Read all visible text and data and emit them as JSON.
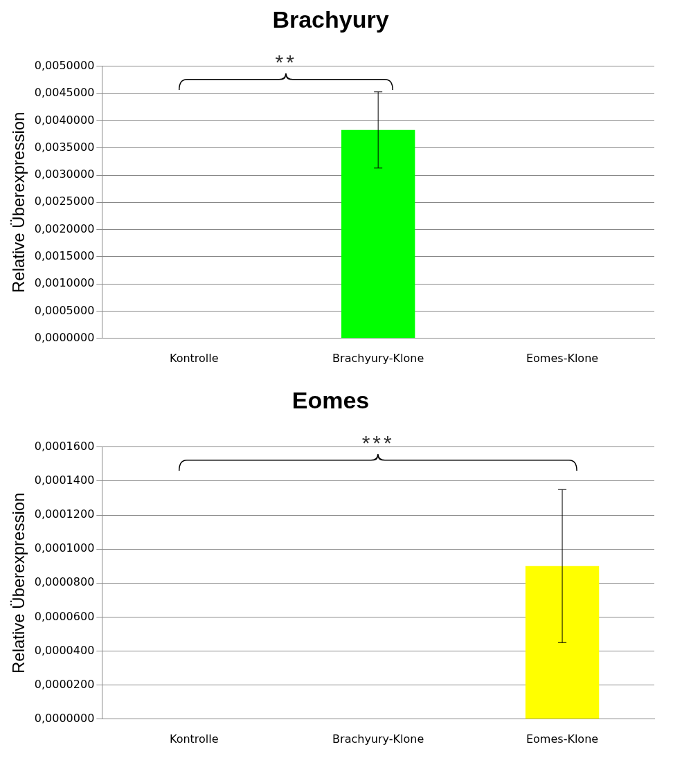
{
  "chart_data": [
    {
      "type": "bar",
      "title": "Brachyury",
      "ylabel": "Relative Überexpression",
      "categories": [
        "Kontrolle",
        "Brachyury-Klone",
        "Eomes-Klone"
      ],
      "values": [
        0,
        0.00383,
        0
      ],
      "errors": [
        null,
        0.0007,
        null
      ],
      "colors": [
        "#00ff00",
        "#00ff00",
        "#00ff00"
      ],
      "ylim": [
        0,
        0.005
      ],
      "yticks": [
        {
          "value": 0,
          "label": "0,0000000"
        },
        {
          "value": 0.0005,
          "label": "0,0005000"
        },
        {
          "value": 0.001,
          "label": "0,0010000"
        },
        {
          "value": 0.0015,
          "label": "0,0015000"
        },
        {
          "value": 0.002,
          "label": "0,0020000"
        },
        {
          "value": 0.0025,
          "label": "0,0025000"
        },
        {
          "value": 0.003,
          "label": "0,0030000"
        },
        {
          "value": 0.0035,
          "label": "0,0035000"
        },
        {
          "value": 0.004,
          "label": "0,0040000"
        },
        {
          "value": 0.0045,
          "label": "0,0045000"
        },
        {
          "value": 0.005,
          "label": "0,0050000"
        }
      ],
      "grid": "y",
      "annotations": [
        "**"
      ]
    },
    {
      "type": "bar",
      "title": "Eomes",
      "ylabel": "Relative Überexpression",
      "categories": [
        "Kontrolle",
        "Brachyury-Klone",
        "Eomes-Klone"
      ],
      "values": [
        0,
        0,
        9e-05
      ],
      "errors": [
        null,
        null,
        4.5e-05
      ],
      "colors": [
        "#ffff00",
        "#ffff00",
        "#ffff00"
      ],
      "ylim": [
        0,
        0.00016
      ],
      "yticks": [
        {
          "value": 0,
          "label": "0,0000000"
        },
        {
          "value": 2e-05,
          "label": "0,0000200"
        },
        {
          "value": 4e-05,
          "label": "0,0000400"
        },
        {
          "value": 6e-05,
          "label": "0,0000600"
        },
        {
          "value": 8e-05,
          "label": "0,0000800"
        },
        {
          "value": 0.0001,
          "label": "0,0001000"
        },
        {
          "value": 0.00012,
          "label": "0,0001200"
        },
        {
          "value": 0.00014,
          "label": "0,0001400"
        },
        {
          "value": 0.00016,
          "label": "0,0001600"
        }
      ],
      "grid": "y",
      "annotations": [
        "***"
      ]
    }
  ]
}
